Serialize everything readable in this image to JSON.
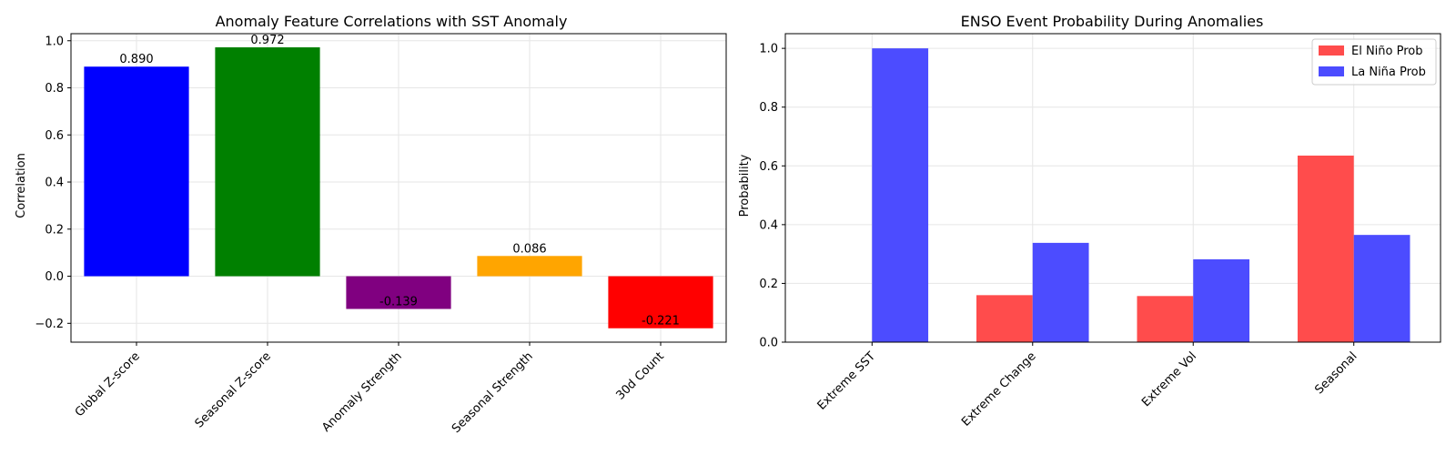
{
  "chart_data": [
    {
      "type": "bar",
      "title": "Anomaly Feature Correlations with SST Anomaly",
      "xlabel": "",
      "ylabel": "Correlation",
      "categories": [
        "Global Z-score",
        "Seasonal Z-score",
        "Anomaly Strength",
        "Seasonal Strength",
        "30d Count"
      ],
      "values": [
        0.89,
        0.972,
        -0.139,
        0.086,
        -0.221
      ],
      "value_labels": [
        "0.890",
        "0.972",
        "-0.139",
        "0.086",
        "-0.221"
      ],
      "colors": [
        "#0000ff",
        "#008000",
        "#800080",
        "#ffa500",
        "#ff0000"
      ],
      "ylim": [
        -0.28,
        1.03
      ],
      "yticks": [
        -0.2,
        0.0,
        0.2,
        0.4,
        0.6,
        0.8,
        1.0
      ],
      "ytick_labels": [
        "−0.2",
        "0.0",
        "0.2",
        "0.4",
        "0.6",
        "0.8",
        "1.0"
      ],
      "grid": true,
      "xtick_rotation": 45
    },
    {
      "type": "bar",
      "title": "ENSO Event Probability During Anomalies",
      "xlabel": "",
      "ylabel": "Probability",
      "categories": [
        "Extreme SST",
        "Extreme Change",
        "Extreme Vol",
        "Seasonal"
      ],
      "series": [
        {
          "name": "El Niño Prob",
          "color": "#ff4c4c",
          "values": [
            0.0,
            0.16,
            0.157,
            0.635
          ]
        },
        {
          "name": "La Niña Prob",
          "color": "#4c4cff",
          "values": [
            1.0,
            0.338,
            0.282,
            0.365
          ]
        }
      ],
      "ylim": [
        0,
        1.05
      ],
      "yticks": [
        0.0,
        0.2,
        0.4,
        0.6,
        0.8,
        1.0
      ],
      "ytick_labels": [
        "0.0",
        "0.2",
        "0.4",
        "0.6",
        "0.8",
        "1.0"
      ],
      "grid": true,
      "legend": "top-right",
      "xtick_rotation": 45
    }
  ]
}
